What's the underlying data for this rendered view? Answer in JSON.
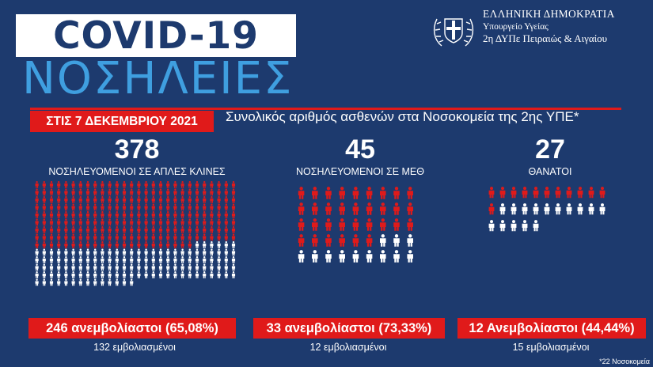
{
  "header": {
    "title": "COVID-19",
    "subtitle": "ΝΟΣΗΛΕΙΕΣ",
    "ministry_line1": "ΕΛΛΗΝΙΚΗ ΔΗΜΟΚΡΑΤΙΑ",
    "ministry_line2": "Υπουργείο Υγείας",
    "ministry_line3": "2η ΔΥΠε Πειραιώς & Αιγαίου",
    "date_banner": "ΣΤΙΣ 7 ΔΕΚΕΜΒΡΙΟΥ 2021",
    "description": "Συνολικός αριθμός ασθενών στα Νοσοκομεία της 2ης ΥΠΕ*"
  },
  "colors": {
    "background": "#1d3a6e",
    "accent_red": "#e01a1a",
    "subtitle_blue": "#3f9fe0",
    "figure_unvaccinated": "#e01a1a",
    "figure_vaccinated": "#ffffff"
  },
  "columns": [
    {
      "id": "ward",
      "total": "378",
      "label": "ΝΟΣΗΛΕΥΟΜΕΝΟΙ ΣΕ ΑΠΛΕΣ ΚΛΙΝΕΣ",
      "unvaccinated_text": "246 ανεμβολίαστοι (65,08%)",
      "vaccinated_text": "132 εμβολιασμένοι",
      "unvaccinated_count": 246,
      "vaccinated_count": 132,
      "icon": "person-icon"
    },
    {
      "id": "icu",
      "total": "45",
      "label": "ΝΟΣΗΛΕΥΟΜΕΝΟΙ ΣΕ ΜΕΘ",
      "unvaccinated_text": "33 ανεμβολίαστοι (73,33%)",
      "vaccinated_text": "12 εμβολιασμένοι",
      "unvaccinated_count": 33,
      "vaccinated_count": 12,
      "icon": "person-icon"
    },
    {
      "id": "deaths",
      "total": "27",
      "label": "ΘΑΝΑΤΟΙ",
      "unvaccinated_text": "12 Ανεμβολίαστοι (44,44%)",
      "vaccinated_text": "15 εμβολιασμένοι",
      "unvaccinated_count": 12,
      "vaccinated_count": 15,
      "icon": "person-icon"
    }
  ],
  "footnote": "*22 Νοσοκομεία"
}
